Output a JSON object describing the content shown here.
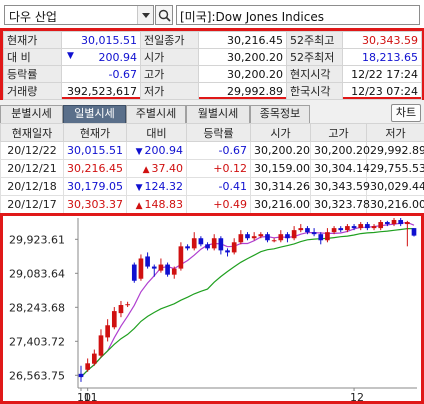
{
  "search": {
    "selected": "다우 산업",
    "index_name": "[미국]:Dow Jones Indices"
  },
  "summary": {
    "rows": [
      [
        {
          "label": "현재가"
        },
        {
          "value": "30,015.51",
          "color": "blue"
        },
        {
          "label": "전일종가"
        },
        {
          "value": "30,216.45"
        },
        {
          "label": "52주최고"
        },
        {
          "value": "30,343.59",
          "color": "red"
        }
      ],
      [
        {
          "label": "대  비"
        },
        {
          "value": "200.94",
          "color": "blue",
          "arrow": "down"
        },
        {
          "label": "시가"
        },
        {
          "value": "30,200.20"
        },
        {
          "label": "52주최저"
        },
        {
          "value": "18,213.65",
          "color": "blue"
        }
      ],
      [
        {
          "label": "등락률"
        },
        {
          "value": "-0.67",
          "color": "blue"
        },
        {
          "label": "고가"
        },
        {
          "value": "30,200.20"
        },
        {
          "label": "현지시각"
        },
        {
          "value": "12/22 17:24"
        }
      ],
      [
        {
          "label": "거래량"
        },
        {
          "value": "392,523,617"
        },
        {
          "label": "저가"
        },
        {
          "value": "29,992.89"
        },
        {
          "label": "한국시각"
        },
        {
          "value": "12/23 07:24"
        }
      ]
    ]
  },
  "tabs": [
    {
      "label": "분별시세",
      "active": false
    },
    {
      "label": "일별시세",
      "active": true
    },
    {
      "label": "주별시세",
      "active": false
    },
    {
      "label": "월별시세",
      "active": false
    },
    {
      "label": "종목정보",
      "active": false
    }
  ],
  "chart_button": "차트",
  "daily": {
    "headers": [
      "현재일자",
      "현재가",
      "대비",
      "등락률",
      "시가",
      "고가",
      "저가"
    ],
    "rows": [
      {
        "date": "20/12/22",
        "close": "30,015.51",
        "dir": "down",
        "chg": "200.94",
        "pct": "-0.67",
        "open": "30,200.20",
        "high": "30,200.20",
        "low": "29,992.89"
      },
      {
        "date": "20/12/21",
        "close": "30,216.45",
        "dir": "up",
        "chg": "37.40",
        "pct": "+0.12",
        "open": "30,159.00",
        "high": "30,304.14",
        "low": "29,755.53"
      },
      {
        "date": "20/12/18",
        "close": "30,179.05",
        "dir": "down",
        "chg": "124.32",
        "pct": "-0.41",
        "open": "30,314.26",
        "high": "30,343.59",
        "low": "30,029.44"
      },
      {
        "date": "20/12/17",
        "close": "30,303.37",
        "dir": "up",
        "chg": "148.83",
        "pct": "+0.49",
        "open": "30,216.00",
        "high": "30,323.78",
        "low": "30,216.00"
      }
    ]
  },
  "colors": {
    "up": "#d01010",
    "down": "#1010d0",
    "ma_short": "#b040d0",
    "ma_long": "#20a020"
  },
  "chart_data": {
    "type": "candlestick",
    "yticks": [
      29923.61,
      29083.64,
      28243.68,
      27403.72,
      26563.75
    ],
    "ytick_labels": [
      "29,923.61",
      "29,083.64",
      "28,243.68",
      "27,403.72",
      "26,563.75"
    ],
    "ylim": [
      26250,
      30450
    ],
    "xtick_labels": [
      {
        "label": "10",
        "index": 0
      },
      {
        "label": "11",
        "index": 1
      },
      {
        "label": "12",
        "index": 41
      }
    ],
    "candles": [
      {
        "o": 26600,
        "c": 26520,
        "h": 26800,
        "l": 26400
      },
      {
        "o": 26700,
        "c": 26860,
        "h": 26980,
        "l": 26650
      },
      {
        "o": 26850,
        "c": 27100,
        "h": 27200,
        "l": 26800
      },
      {
        "o": 27050,
        "c": 27550,
        "h": 27700,
        "l": 27000
      },
      {
        "o": 27500,
        "c": 27800,
        "h": 27950,
        "l": 27400
      },
      {
        "o": 27750,
        "c": 28150,
        "h": 28250,
        "l": 27700
      },
      {
        "o": 28100,
        "c": 28300,
        "h": 28400,
        "l": 28000
      },
      {
        "o": 28300,
        "c": 28320,
        "h": 28380,
        "l": 28250
      },
      {
        "o": 29300,
        "c": 28900,
        "h": 29350,
        "l": 28850
      },
      {
        "o": 28950,
        "c": 29450,
        "h": 29550,
        "l": 28900
      },
      {
        "o": 29500,
        "c": 29250,
        "h": 29600,
        "l": 29200
      },
      {
        "o": 29250,
        "c": 29200,
        "h": 29300,
        "l": 29000
      },
      {
        "o": 29150,
        "c": 29300,
        "h": 29450,
        "l": 29100
      },
      {
        "o": 29300,
        "c": 29050,
        "h": 29350,
        "l": 29000
      },
      {
        "o": 29050,
        "c": 29200,
        "h": 29250,
        "l": 28950
      },
      {
        "o": 29200,
        "c": 29750,
        "h": 29850,
        "l": 29150
      },
      {
        "o": 29750,
        "c": 29700,
        "h": 29800,
        "l": 29650
      },
      {
        "o": 29700,
        "c": 29950,
        "h": 30100,
        "l": 29650
      },
      {
        "o": 29950,
        "c": 29800,
        "h": 30000,
        "l": 29750
      },
      {
        "o": 29800,
        "c": 29700,
        "h": 29850,
        "l": 29650
      },
      {
        "o": 29700,
        "c": 29950,
        "h": 30050,
        "l": 29650
      },
      {
        "o": 29950,
        "c": 29650,
        "h": 30000,
        "l": 29550
      },
      {
        "o": 29650,
        "c": 29600,
        "h": 29700,
        "l": 29500
      },
      {
        "o": 29600,
        "c": 29850,
        "h": 29950,
        "l": 29550
      },
      {
        "o": 29850,
        "c": 30050,
        "h": 30150,
        "l": 29800
      },
      {
        "o": 30050,
        "c": 29950,
        "h": 30100,
        "l": 29900
      },
      {
        "o": 29950,
        "c": 30000,
        "h": 30100,
        "l": 29900
      },
      {
        "o": 30000,
        "c": 30050,
        "h": 30100,
        "l": 29950
      },
      {
        "o": 30050,
        "c": 29900,
        "h": 30100,
        "l": 29850
      },
      {
        "o": 29900,
        "c": 29900,
        "h": 29950,
        "l": 29850
      },
      {
        "o": 29900,
        "c": 30050,
        "h": 30150,
        "l": 29850
      },
      {
        "o": 30050,
        "c": 29950,
        "h": 30100,
        "l": 29850
      },
      {
        "o": 29950,
        "c": 30150,
        "h": 30250,
        "l": 29900
      },
      {
        "o": 30150,
        "c": 30200,
        "h": 30300,
        "l": 30100
      },
      {
        "o": 30200,
        "c": 30100,
        "h": 30250,
        "l": 30050
      },
      {
        "o": 30100,
        "c": 30050,
        "h": 30200,
        "l": 30000
      },
      {
        "o": 30050,
        "c": 29900,
        "h": 30100,
        "l": 29800
      },
      {
        "o": 29900,
        "c": 30100,
        "h": 30200,
        "l": 29850
      },
      {
        "o": 30100,
        "c": 30200,
        "h": 30250,
        "l": 30050
      },
      {
        "o": 30200,
        "c": 30150,
        "h": 30250,
        "l": 30100
      },
      {
        "o": 30150,
        "c": 30250,
        "h": 30300,
        "l": 30100
      },
      {
        "o": 30250,
        "c": 30200,
        "h": 30300,
        "l": 30150
      },
      {
        "o": 30200,
        "c": 30300,
        "h": 30350,
        "l": 30150
      },
      {
        "o": 30300,
        "c": 30200,
        "h": 30350,
        "l": 30150
      },
      {
        "o": 30200,
        "c": 30250,
        "h": 30300,
        "l": 30150
      },
      {
        "o": 30200,
        "c": 30350,
        "h": 30400,
        "l": 30150
      },
      {
        "o": 30350,
        "c": 30300,
        "h": 30380,
        "l": 30250
      },
      {
        "o": 30300,
        "c": 30400,
        "h": 30450,
        "l": 30250
      },
      {
        "o": 30400,
        "c": 30300,
        "h": 30450,
        "l": 30250
      },
      {
        "o": 30300,
        "c": 30350,
        "h": 30380,
        "l": 29750
      },
      {
        "o": 30200,
        "c": 30015,
        "h": 30200,
        "l": 29993
      }
    ]
  }
}
